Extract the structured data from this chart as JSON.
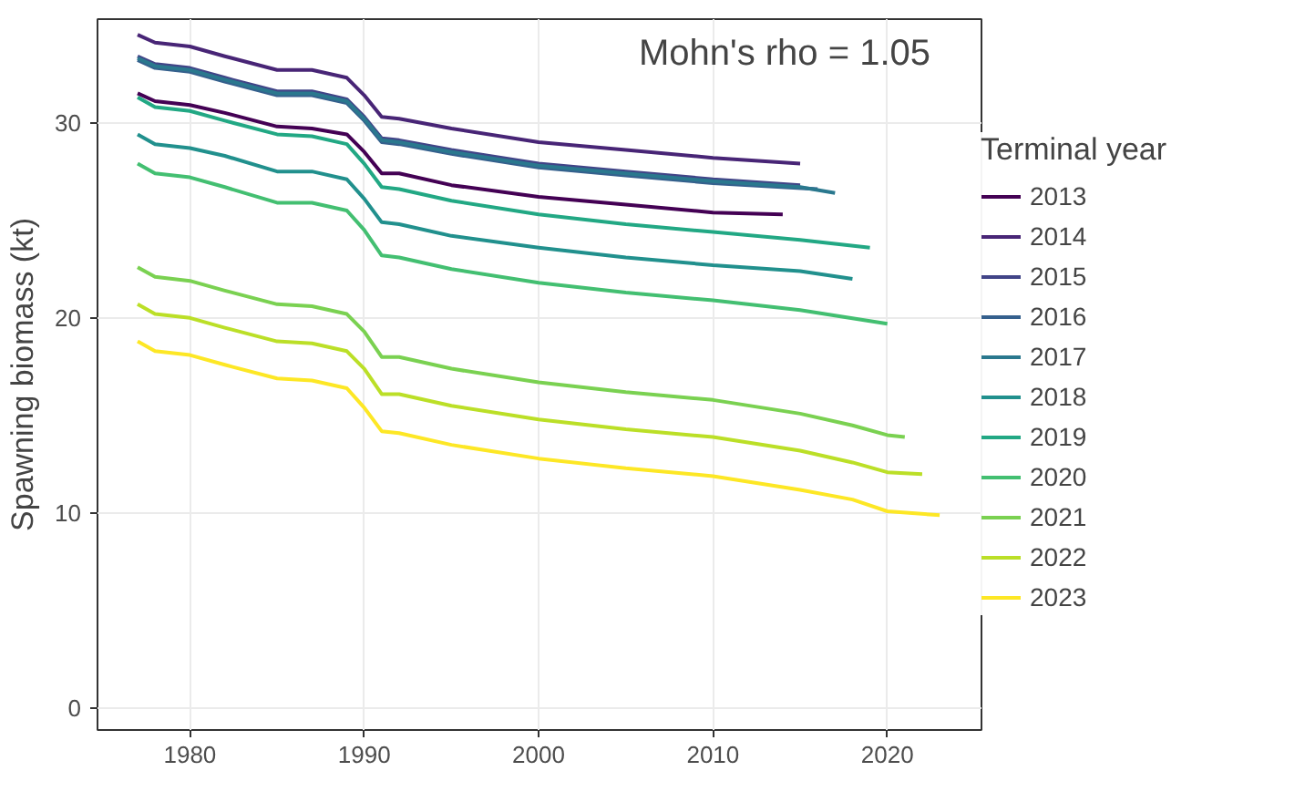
{
  "chart_data": {
    "type": "line",
    "ylabel": "Spawning biomass (kt)",
    "legend_title": "Terminal year",
    "annotations": [
      "Mohn's rho = 1.05"
    ],
    "xlim": [
      1974.7,
      2025.4
    ],
    "ylim": [
      -1.1,
      35.3
    ],
    "xticks": [
      1980,
      1990,
      2000,
      2010,
      2020
    ],
    "yticks": [
      0,
      10,
      20,
      30
    ],
    "grid": true,
    "legend": "right",
    "line_style": "solid",
    "series": [
      {
        "name": "2013",
        "color": "#440154",
        "x": [
          1977,
          1978,
          1980,
          1982,
          1985,
          1987,
          1989,
          1990,
          1991,
          1992,
          1995,
          2000,
          2005,
          2010,
          2014
        ],
        "values": [
          31.5,
          31.1,
          30.9,
          30.5,
          29.8,
          29.7,
          29.4,
          28.5,
          27.4,
          27.4,
          26.8,
          26.2,
          25.8,
          25.4,
          25.3
        ]
      },
      {
        "name": "2014",
        "color": "#482576",
        "x": [
          1977,
          1978,
          1980,
          1982,
          1985,
          1987,
          1989,
          1990,
          1991,
          1992,
          1995,
          2000,
          2005,
          2010,
          2015
        ],
        "values": [
          34.5,
          34.1,
          33.9,
          33.4,
          32.7,
          32.7,
          32.3,
          31.4,
          30.3,
          30.2,
          29.7,
          29.0,
          28.6,
          28.2,
          27.9
        ]
      },
      {
        "name": "2015",
        "color": "#414487",
        "x": [
          1977,
          1978,
          1980,
          1982,
          1985,
          1987,
          1989,
          1990,
          1991,
          1992,
          1995,
          2000,
          2005,
          2010,
          2015
        ],
        "values": [
          33.4,
          33.0,
          32.8,
          32.3,
          31.6,
          31.6,
          31.2,
          30.3,
          29.2,
          29.1,
          28.6,
          27.9,
          27.5,
          27.1,
          26.8
        ]
      },
      {
        "name": "2016",
        "color": "#35608d",
        "x": [
          1977,
          1978,
          1980,
          1982,
          1985,
          1987,
          1989,
          1990,
          1991,
          1992,
          1995,
          2000,
          2005,
          2010,
          2016
        ],
        "values": [
          33.2,
          32.8,
          32.6,
          32.1,
          31.4,
          31.4,
          31.0,
          30.1,
          29.0,
          28.9,
          28.4,
          27.7,
          27.3,
          26.9,
          26.6
        ]
      },
      {
        "name": "2017",
        "color": "#2a788e",
        "x": [
          1977,
          1978,
          1980,
          1982,
          1985,
          1987,
          1989,
          1990,
          1991,
          1992,
          1995,
          2000,
          2005,
          2010,
          2015,
          2017
        ],
        "values": [
          33.3,
          32.9,
          32.7,
          32.2,
          31.5,
          31.5,
          31.1,
          30.2,
          29.1,
          29.0,
          28.5,
          27.8,
          27.4,
          27.0,
          26.7,
          26.4
        ]
      },
      {
        "name": "2018",
        "color": "#21908d",
        "x": [
          1977,
          1978,
          1980,
          1982,
          1985,
          1987,
          1989,
          1990,
          1991,
          1992,
          1995,
          2000,
          2005,
          2010,
          2015,
          2018
        ],
        "values": [
          29.4,
          28.9,
          28.7,
          28.3,
          27.5,
          27.5,
          27.1,
          26.1,
          24.9,
          24.8,
          24.2,
          23.6,
          23.1,
          22.7,
          22.4,
          22.0
        ]
      },
      {
        "name": "2019",
        "color": "#22a884",
        "x": [
          1977,
          1978,
          1980,
          1982,
          1985,
          1987,
          1989,
          1990,
          1991,
          1992,
          1995,
          2000,
          2005,
          2010,
          2015,
          2019
        ],
        "values": [
          31.3,
          30.8,
          30.6,
          30.1,
          29.4,
          29.3,
          28.9,
          27.9,
          26.7,
          26.6,
          26.0,
          25.3,
          24.8,
          24.4,
          24.0,
          23.6
        ]
      },
      {
        "name": "2020",
        "color": "#43bf71",
        "x": [
          1977,
          1978,
          1980,
          1982,
          1985,
          1987,
          1989,
          1990,
          1991,
          1992,
          1995,
          2000,
          2005,
          2010,
          2015,
          2020
        ],
        "values": [
          27.9,
          27.4,
          27.2,
          26.7,
          25.9,
          25.9,
          25.5,
          24.5,
          23.2,
          23.1,
          22.5,
          21.8,
          21.3,
          20.9,
          20.4,
          19.7
        ]
      },
      {
        "name": "2021",
        "color": "#7ad151",
        "x": [
          1977,
          1978,
          1980,
          1982,
          1985,
          1987,
          1989,
          1990,
          1991,
          1992,
          1995,
          2000,
          2005,
          2010,
          2015,
          2018,
          2020,
          2021
        ],
        "values": [
          22.6,
          22.1,
          21.9,
          21.4,
          20.7,
          20.6,
          20.2,
          19.3,
          18.0,
          18.0,
          17.4,
          16.7,
          16.2,
          15.8,
          15.1,
          14.5,
          14.0,
          13.9
        ]
      },
      {
        "name": "2022",
        "color": "#bbdf27",
        "x": [
          1977,
          1978,
          1980,
          1982,
          1985,
          1987,
          1989,
          1990,
          1991,
          1992,
          1995,
          2000,
          2005,
          2010,
          2015,
          2018,
          2020,
          2022
        ],
        "values": [
          20.7,
          20.2,
          20.0,
          19.5,
          18.8,
          18.7,
          18.3,
          17.4,
          16.1,
          16.1,
          15.5,
          14.8,
          14.3,
          13.9,
          13.2,
          12.6,
          12.1,
          12.0
        ]
      },
      {
        "name": "2023",
        "color": "#fde725",
        "x": [
          1977,
          1978,
          1980,
          1982,
          1985,
          1987,
          1989,
          1990,
          1991,
          1992,
          1995,
          2000,
          2005,
          2010,
          2015,
          2018,
          2020,
          2023
        ],
        "values": [
          18.8,
          18.3,
          18.1,
          17.6,
          16.9,
          16.8,
          16.4,
          15.4,
          14.2,
          14.1,
          13.5,
          12.8,
          12.3,
          11.9,
          11.2,
          10.7,
          10.1,
          9.9
        ]
      }
    ]
  }
}
